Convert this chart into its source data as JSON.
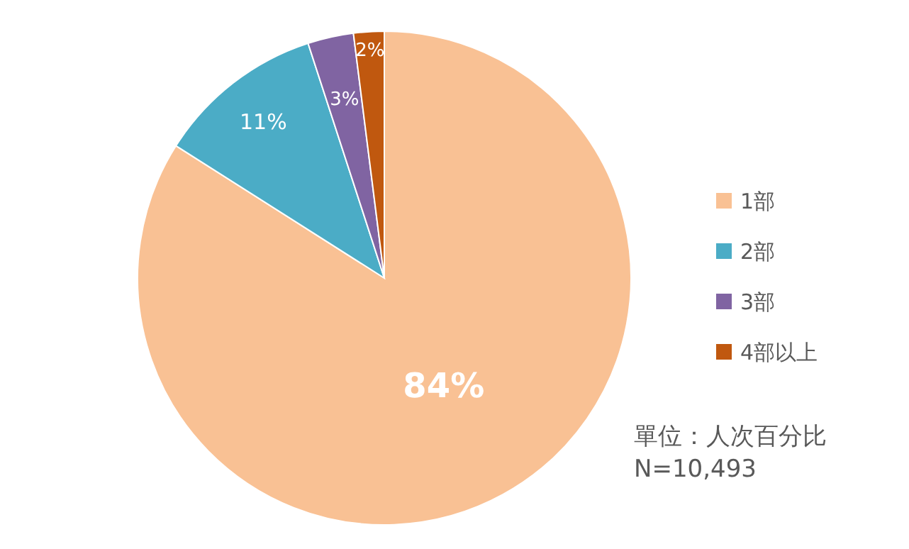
{
  "chart_data": {
    "type": "pie",
    "categories": [
      "1部",
      "2部",
      "3部",
      "4部以上"
    ],
    "values": [
      84,
      11,
      3,
      2
    ],
    "colors": [
      "#f9c194",
      "#4bacc6",
      "#8064a2",
      "#c0580f"
    ],
    "value_labels": [
      "84%",
      "11%",
      "3%",
      "2%"
    ],
    "legend": "right",
    "annotations": [
      "單位：人次百分比",
      "N=10,493"
    ]
  }
}
